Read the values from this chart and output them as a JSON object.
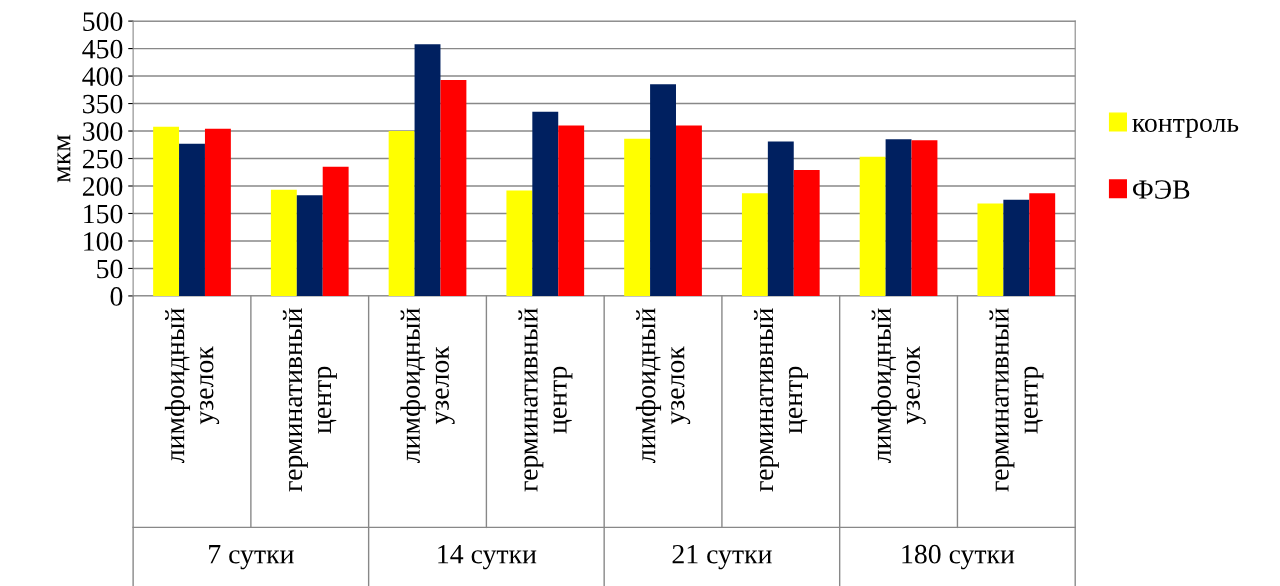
{
  "chart_data": {
    "type": "bar",
    "ylabel": "мкм",
    "categories": [
      "лимфоидный\nузелок",
      "герминативный\nцентр",
      "лимфоидный\nузелок",
      "герминативный\nцентр",
      "лимфоидный\nузелок",
      "герминативный\nцентр",
      "лимфоидный\nузелок",
      "герминативный\nцентр"
    ],
    "series": [
      {
        "name": "контроль",
        "color": "#ffff00",
        "values": [
          308,
          193,
          300,
          192,
          286,
          187,
          253,
          168
        ]
      },
      {
        "color": "#002060",
        "values": [
          277,
          183,
          458,
          335,
          385,
          281,
          285,
          175
        ]
      },
      {
        "name": "ФЭВ",
        "color": "#ff0000",
        "values": [
          304,
          235,
          393,
          310,
          310,
          229,
          283,
          187
        ]
      }
    ],
    "annotations": [
      "7 сутки",
      "14 сутки",
      "21 сутки",
      "180 сутки"
    ],
    "ylim": [
      0,
      500
    ],
    "yticks": [
      0,
      50,
      100,
      150,
      200,
      250,
      300,
      350,
      400,
      450,
      500
    ],
    "grid": "y",
    "legend": "right"
  }
}
